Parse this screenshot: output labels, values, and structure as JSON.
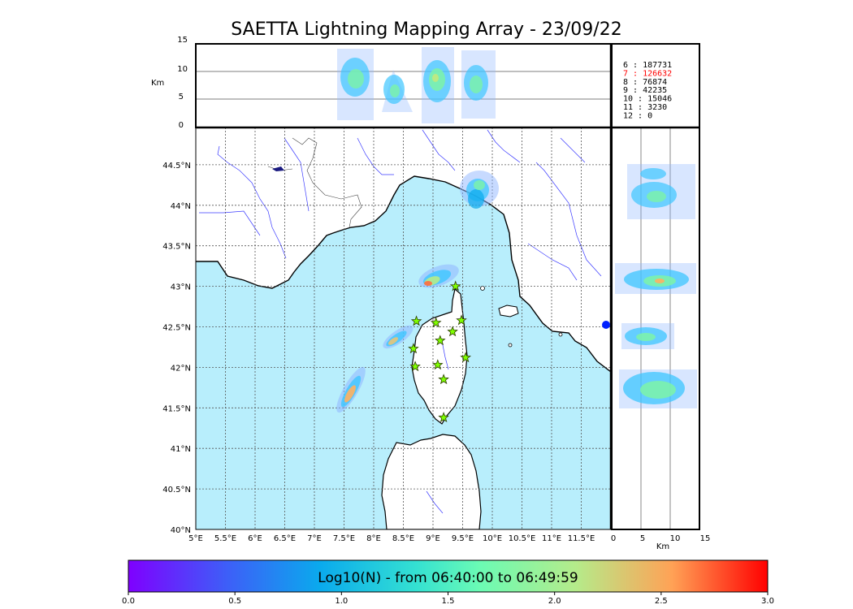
{
  "title": "SAETTA Lightning Mapping Array - 23/09/22",
  "top_panel": {
    "ylabel": "Km",
    "yticks": [
      "15",
      "10",
      "5",
      "0"
    ]
  },
  "right_panel": {
    "xlabel": "Km",
    "xticks": [
      "0",
      "5",
      "10",
      "15"
    ]
  },
  "map": {
    "lon_ticks": [
      "5°E",
      "5.5°E",
      "6°E",
      "6.5°E",
      "7°E",
      "7.5°E",
      "8°E",
      "8.5°E",
      "9°E",
      "9.5°E",
      "10°E",
      "10.5°E",
      "11°E",
      "11.5°E"
    ],
    "lat_ticks": [
      "40°N",
      "40.5°N",
      "41°N",
      "41.5°N",
      "42°N",
      "42.5°N",
      "43°N",
      "43.5°N",
      "44°N",
      "44.5°N"
    ],
    "sea_color": "#b8eefc",
    "land_color": "#ffffff",
    "station_color": "#7fff00",
    "stations": [
      {
        "lon": 9.38,
        "lat": 43.0
      },
      {
        "lon": 8.72,
        "lat": 42.57
      },
      {
        "lon": 9.05,
        "lat": 42.55
      },
      {
        "lon": 9.48,
        "lat": 42.58
      },
      {
        "lon": 9.33,
        "lat": 42.44
      },
      {
        "lon": 9.12,
        "lat": 42.33
      },
      {
        "lon": 8.67,
        "lat": 42.23
      },
      {
        "lon": 9.55,
        "lat": 42.12
      },
      {
        "lon": 8.7,
        "lat": 42.01
      },
      {
        "lon": 9.08,
        "lat": 42.03
      },
      {
        "lon": 9.18,
        "lat": 41.85
      },
      {
        "lon": 9.18,
        "lat": 41.38
      }
    ]
  },
  "station_counts": [
    {
      "label": "6  :   187731",
      "color": "#000000"
    },
    {
      "label": "7  :   126632",
      "color": "#ff0000"
    },
    {
      "label": "8  :    76874",
      "color": "#000000"
    },
    {
      "label": "9  :    42235",
      "color": "#000000"
    },
    {
      "label": "10 :    15046",
      "color": "#000000"
    },
    {
      "label": "11 :     3230",
      "color": "#000000"
    },
    {
      "label": "12 :        0",
      "color": "#000000"
    }
  ],
  "colorbar": {
    "label": "Log10(N) - from 06:40:00 to 06:49:59",
    "ticks": [
      "0.0",
      "0.5",
      "1.0",
      "1.5",
      "2.0",
      "2.5",
      "3.0"
    ]
  }
}
